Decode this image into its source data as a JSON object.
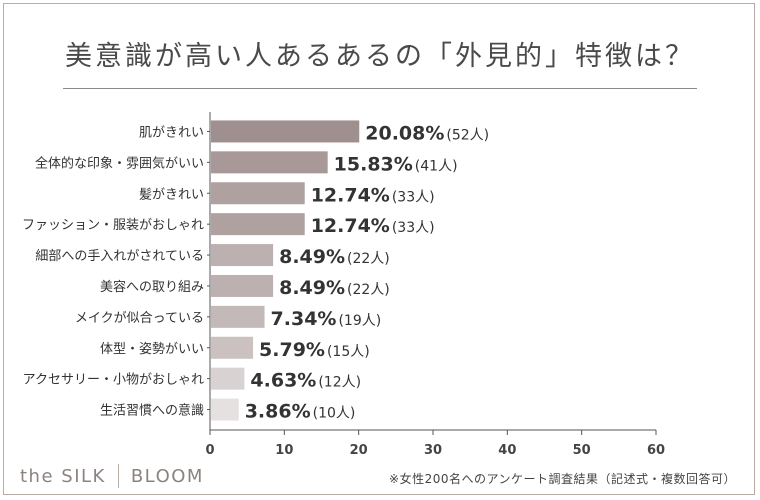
{
  "chart_data": {
    "type": "bar",
    "orientation": "horizontal",
    "title": "美意識が高い人あるあるの「外見的」特徴は？",
    "categories": [
      "肌がきれい",
      "全体的な印象・雰囲気がいい",
      "髪がきれい",
      "ファッション・服装がおしゃれ",
      "細部への手入れがされている",
      "美容への取り組み",
      "メイクが似合っている",
      "体型・姿勢がいい",
      "アクセサリー・小物がおしゃれ",
      "生活習慣への意識"
    ],
    "values": [
      20.08,
      15.83,
      12.74,
      12.74,
      8.49,
      8.49,
      7.34,
      5.79,
      4.63,
      3.86
    ],
    "value_labels": [
      "20.08%",
      "15.83%",
      "12.74%",
      "12.74%",
      "8.49%",
      "8.49%",
      "7.34%",
      "5.79%",
      "4.63%",
      "3.86%"
    ],
    "count_labels": [
      "(52人)",
      "(41人)",
      "(33人)",
      "(33人)",
      "(22人)",
      "(22人)",
      "(19人)",
      "(15人)",
      "(12人)",
      "(10人)"
    ],
    "bar_colors": [
      "#a08f8f",
      "#a89898",
      "#b0a1a1",
      "#b0a1a1",
      "#bdb0b0",
      "#bdb0b0",
      "#c4b9b9",
      "#cbc1c1",
      "#d9d2d2",
      "#e6e1e1"
    ],
    "xlim": [
      0,
      60
    ],
    "xticks": [
      0,
      10,
      20,
      30,
      40,
      50,
      60
    ],
    "xlabel": "",
    "ylabel": ""
  },
  "footer": {
    "note": "※女性200名へのアンケート調査結果（記述式・複数回答可）",
    "brand_left": "the SILK",
    "brand_right": "BLOOM"
  }
}
